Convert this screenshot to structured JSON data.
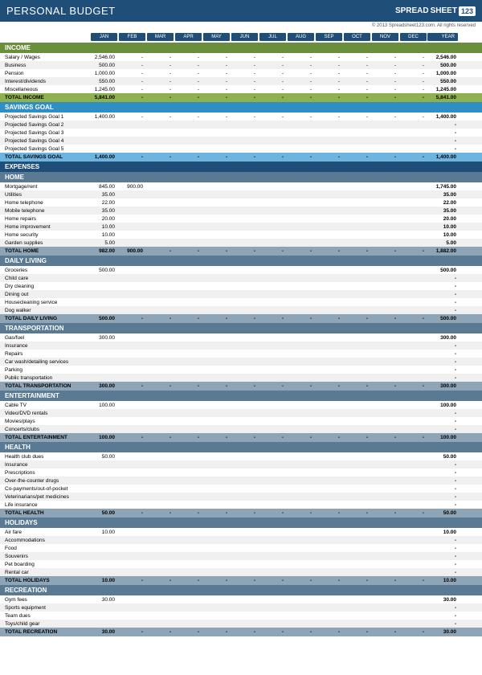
{
  "title": "PERSONAL BUDGET",
  "logo": {
    "prefix": "SPREAD",
    "mid": "SHEET",
    "suffix": "123"
  },
  "copyright": "© 2013 Spreadsheet123.com. All rights reserved",
  "months": [
    "JAN",
    "FEB",
    "MAR",
    "APR",
    "MAY",
    "JUN",
    "JUL",
    "AUG",
    "SEP",
    "OCT",
    "NOV",
    "DEC"
  ],
  "yearLabel": "YEAR",
  "colors": {
    "headerBg": "#1f4e79",
    "incomeHdr": "#6a8f3c",
    "incomeTotal": "#8fb04e",
    "savingsHdr": "#2f8fc4",
    "savingsTotal": "#6db4de",
    "expensesHdr": "#1f4e79",
    "catHdr": "#5a7a94",
    "catTotal": "#8ea5b8"
  },
  "sections": [
    {
      "name": "INCOME",
      "hdrColor": "#6a8f3c",
      "totalColor": "#8fb04e",
      "totalLabel": "TOTAL INCOME",
      "rows": [
        {
          "label": "Salary / Wages",
          "vals": [
            "2,546.00",
            "-",
            "-",
            "-",
            "-",
            "-",
            "-",
            "-",
            "-",
            "-",
            "-",
            "-"
          ],
          "year": "2,546.00"
        },
        {
          "label": "Business",
          "vals": [
            "500.00",
            "-",
            "-",
            "-",
            "-",
            "-",
            "-",
            "-",
            "-",
            "-",
            "-",
            "-"
          ],
          "year": "500.00"
        },
        {
          "label": "Pension",
          "vals": [
            "1,000.00",
            "-",
            "-",
            "-",
            "-",
            "-",
            "-",
            "-",
            "-",
            "-",
            "-",
            "-"
          ],
          "year": "1,000.00"
        },
        {
          "label": "Interest/dividends",
          "vals": [
            "550.00",
            "-",
            "-",
            "-",
            "-",
            "-",
            "-",
            "-",
            "-",
            "-",
            "-",
            "-"
          ],
          "year": "550.00"
        },
        {
          "label": "Miscellaneous",
          "vals": [
            "1,245.00",
            "-",
            "-",
            "-",
            "-",
            "-",
            "-",
            "-",
            "-",
            "-",
            "-",
            "-"
          ],
          "year": "1,245.00"
        }
      ],
      "total": {
        "vals": [
          "5,841.00",
          "-",
          "-",
          "-",
          "-",
          "-",
          "-",
          "-",
          "-",
          "-",
          "-",
          "-"
        ],
        "year": "5,841.00"
      }
    },
    {
      "name": "SAVINGS GOAL",
      "hdrColor": "#2f8fc4",
      "totalColor": "#6db4de",
      "totalLabel": "TOTAL SAVINGS GOAL",
      "rows": [
        {
          "label": "Projected Savings Goal 1",
          "vals": [
            "1,400.00",
            "-",
            "-",
            "-",
            "-",
            "-",
            "-",
            "-",
            "-",
            "-",
            "-",
            "-"
          ],
          "year": "1,400.00"
        },
        {
          "label": "Projected Savings Goal 2",
          "vals": [
            "",
            "",
            "",
            "",
            "",
            "",
            "",
            "",
            "",
            "",
            "",
            ""
          ],
          "year": "-"
        },
        {
          "label": "Projected Savings Goal 3",
          "vals": [
            "",
            "",
            "",
            "",
            "",
            "",
            "",
            "",
            "",
            "",
            "",
            ""
          ],
          "year": "-"
        },
        {
          "label": "Projected Savings Goal 4",
          "vals": [
            "",
            "",
            "",
            "",
            "",
            "",
            "",
            "",
            "",
            "",
            "",
            ""
          ],
          "year": "-"
        },
        {
          "label": "Projected Savings Goal 5",
          "vals": [
            "",
            "",
            "",
            "",
            "",
            "",
            "",
            "",
            "",
            "",
            "",
            ""
          ],
          "year": "-"
        }
      ],
      "total": {
        "vals": [
          "1,400.00",
          "-",
          "-",
          "-",
          "-",
          "-",
          "-",
          "-",
          "-",
          "-",
          "-",
          "-"
        ],
        "year": "1,400.00"
      }
    }
  ],
  "expensesLabel": "EXPENSES",
  "expenseCats": [
    {
      "name": "HOME",
      "totalLabel": "TOTAL HOME",
      "rows": [
        {
          "label": "Mortgage/rent",
          "vals": [
            "845.00",
            "900.00",
            "",
            "",
            "",
            "",
            "",
            "",
            "",
            "",
            "",
            ""
          ],
          "year": "1,745.00"
        },
        {
          "label": "Utilities",
          "vals": [
            "35.00",
            "",
            "",
            "",
            "",
            "",
            "",
            "",
            "",
            "",
            "",
            ""
          ],
          "year": "35.00"
        },
        {
          "label": "Home telephone",
          "vals": [
            "22.00",
            "",
            "",
            "",
            "",
            "",
            "",
            "",
            "",
            "",
            "",
            ""
          ],
          "year": "22.00"
        },
        {
          "label": "Mobile telephone",
          "vals": [
            "35.00",
            "",
            "",
            "",
            "",
            "",
            "",
            "",
            "",
            "",
            "",
            ""
          ],
          "year": "35.00"
        },
        {
          "label": "Home repairs",
          "vals": [
            "20.00",
            "",
            "",
            "",
            "",
            "",
            "",
            "",
            "",
            "",
            "",
            ""
          ],
          "year": "20.00"
        },
        {
          "label": "Home improvement",
          "vals": [
            "10.00",
            "",
            "",
            "",
            "",
            "",
            "",
            "",
            "",
            "",
            "",
            ""
          ],
          "year": "10.00"
        },
        {
          "label": "Home security",
          "vals": [
            "10.00",
            "",
            "",
            "",
            "",
            "",
            "",
            "",
            "",
            "",
            "",
            ""
          ],
          "year": "10.00"
        },
        {
          "label": "Garden supplies",
          "vals": [
            "5.00",
            "",
            "",
            "",
            "",
            "",
            "",
            "",
            "",
            "",
            "",
            ""
          ],
          "year": "5.00"
        }
      ],
      "total": {
        "vals": [
          "982.00",
          "900.00",
          "-",
          "-",
          "-",
          "-",
          "-",
          "-",
          "-",
          "-",
          "-",
          "-"
        ],
        "year": "1,882.00"
      }
    },
    {
      "name": "DAILY LIVING",
      "totalLabel": "TOTAL DAILY LIVING",
      "rows": [
        {
          "label": "Groceries",
          "vals": [
            "500.00",
            "",
            "",
            "",
            "",
            "",
            "",
            "",
            "",
            "",
            "",
            ""
          ],
          "year": "500.00"
        },
        {
          "label": "Child care",
          "vals": [
            "",
            "",
            "",
            "",
            "",
            "",
            "",
            "",
            "",
            "",
            "",
            ""
          ],
          "year": "-"
        },
        {
          "label": "Dry cleaning",
          "vals": [
            "",
            "",
            "",
            "",
            "",
            "",
            "",
            "",
            "",
            "",
            "",
            ""
          ],
          "year": "-"
        },
        {
          "label": "Dining out",
          "vals": [
            "",
            "",
            "",
            "",
            "",
            "",
            "",
            "",
            "",
            "",
            "",
            ""
          ],
          "year": "-"
        },
        {
          "label": "Housecleaning service",
          "vals": [
            "",
            "",
            "",
            "",
            "",
            "",
            "",
            "",
            "",
            "",
            "",
            ""
          ],
          "year": "-"
        },
        {
          "label": "Dog walker",
          "vals": [
            "",
            "",
            "",
            "",
            "",
            "",
            "",
            "",
            "",
            "",
            "",
            ""
          ],
          "year": "-"
        }
      ],
      "total": {
        "vals": [
          "500.00",
          "-",
          "-",
          "-",
          "-",
          "-",
          "-",
          "-",
          "-",
          "-",
          "-",
          "-"
        ],
        "year": "500.00"
      }
    },
    {
      "name": "TRANSPORTATION",
      "totalLabel": "TOTAL TRANSPORTATION",
      "rows": [
        {
          "label": "Gas/fuel",
          "vals": [
            "300.00",
            "",
            "",
            "",
            "",
            "",
            "",
            "",
            "",
            "",
            "",
            ""
          ],
          "year": "300.00"
        },
        {
          "label": "Insurance",
          "vals": [
            "",
            "",
            "",
            "",
            "",
            "",
            "",
            "",
            "",
            "",
            "",
            ""
          ],
          "year": "-"
        },
        {
          "label": "Repairs",
          "vals": [
            "",
            "",
            "",
            "",
            "",
            "",
            "",
            "",
            "",
            "",
            "",
            ""
          ],
          "year": "-"
        },
        {
          "label": "Car wash/detailing services",
          "vals": [
            "",
            "",
            "",
            "",
            "",
            "",
            "",
            "",
            "",
            "",
            "",
            ""
          ],
          "year": "-"
        },
        {
          "label": "Parking",
          "vals": [
            "",
            "",
            "",
            "",
            "",
            "",
            "",
            "",
            "",
            "",
            "",
            ""
          ],
          "year": "-"
        },
        {
          "label": "Public transportation",
          "vals": [
            "",
            "",
            "",
            "",
            "",
            "",
            "",
            "",
            "",
            "",
            "",
            ""
          ],
          "year": "-"
        }
      ],
      "total": {
        "vals": [
          "300.00",
          "-",
          "-",
          "-",
          "-",
          "-",
          "-",
          "-",
          "-",
          "-",
          "-",
          "-"
        ],
        "year": "300.00"
      }
    },
    {
      "name": "ENTERTAINMENT",
      "totalLabel": "TOTAL ENTERTAINMENT",
      "rows": [
        {
          "label": "Cable TV",
          "vals": [
            "100.00",
            "",
            "",
            "",
            "",
            "",
            "",
            "",
            "",
            "",
            "",
            ""
          ],
          "year": "100.00"
        },
        {
          "label": "Video/DVD rentals",
          "vals": [
            "",
            "",
            "",
            "",
            "",
            "",
            "",
            "",
            "",
            "",
            "",
            ""
          ],
          "year": "-"
        },
        {
          "label": "Movies/plays",
          "vals": [
            "",
            "",
            "",
            "",
            "",
            "",
            "",
            "",
            "",
            "",
            "",
            ""
          ],
          "year": "-"
        },
        {
          "label": "Concerts/clubs",
          "vals": [
            "",
            "",
            "",
            "",
            "",
            "",
            "",
            "",
            "",
            "",
            "",
            ""
          ],
          "year": "-"
        }
      ],
      "total": {
        "vals": [
          "100.00",
          "-",
          "-",
          "-",
          "-",
          "-",
          "-",
          "-",
          "-",
          "-",
          "-",
          "-"
        ],
        "year": "100.00"
      }
    },
    {
      "name": "HEALTH",
      "totalLabel": "TOTAL HEALTH",
      "rows": [
        {
          "label": "Health club dues",
          "vals": [
            "50.00",
            "",
            "",
            "",
            "",
            "",
            "",
            "",
            "",
            "",
            "",
            ""
          ],
          "year": "50.00"
        },
        {
          "label": "Insurance",
          "vals": [
            "",
            "",
            "",
            "",
            "",
            "",
            "",
            "",
            "",
            "",
            "",
            ""
          ],
          "year": "-"
        },
        {
          "label": "Prescriptions",
          "vals": [
            "",
            "",
            "",
            "",
            "",
            "",
            "",
            "",
            "",
            "",
            "",
            ""
          ],
          "year": "-"
        },
        {
          "label": "Over-the-counter drugs",
          "vals": [
            "",
            "",
            "",
            "",
            "",
            "",
            "",
            "",
            "",
            "",
            "",
            ""
          ],
          "year": "-"
        },
        {
          "label": "Co-payments/out-of-pocket",
          "vals": [
            "",
            "",
            "",
            "",
            "",
            "",
            "",
            "",
            "",
            "",
            "",
            ""
          ],
          "year": "-"
        },
        {
          "label": "Veterinarians/pet medicines",
          "vals": [
            "",
            "",
            "",
            "",
            "",
            "",
            "",
            "",
            "",
            "",
            "",
            ""
          ],
          "year": "-"
        },
        {
          "label": "Life insurance",
          "vals": [
            "",
            "",
            "",
            "",
            "",
            "",
            "",
            "",
            "",
            "",
            "",
            ""
          ],
          "year": "-"
        }
      ],
      "total": {
        "vals": [
          "50.00",
          "-",
          "-",
          "-",
          "-",
          "-",
          "-",
          "-",
          "-",
          "-",
          "-",
          "-"
        ],
        "year": "50.00"
      }
    },
    {
      "name": "HOLIDAYS",
      "totalLabel": "TOTAL HOLIDAYS",
      "rows": [
        {
          "label": "Air fare",
          "vals": [
            "10.00",
            "",
            "",
            "",
            "",
            "",
            "",
            "",
            "",
            "",
            "",
            ""
          ],
          "year": "10.00"
        },
        {
          "label": "Accommodations",
          "vals": [
            "",
            "",
            "",
            "",
            "",
            "",
            "",
            "",
            "",
            "",
            "",
            ""
          ],
          "year": "-"
        },
        {
          "label": "Food",
          "vals": [
            "",
            "",
            "",
            "",
            "",
            "",
            "",
            "",
            "",
            "",
            "",
            ""
          ],
          "year": "-"
        },
        {
          "label": "Souvenirs",
          "vals": [
            "",
            "",
            "",
            "",
            "",
            "",
            "",
            "",
            "",
            "",
            "",
            ""
          ],
          "year": "-"
        },
        {
          "label": "Pet boarding",
          "vals": [
            "",
            "",
            "",
            "",
            "",
            "",
            "",
            "",
            "",
            "",
            "",
            ""
          ],
          "year": "-"
        },
        {
          "label": "Rental car",
          "vals": [
            "",
            "",
            "",
            "",
            "",
            "",
            "",
            "",
            "",
            "",
            "",
            ""
          ],
          "year": "-"
        }
      ],
      "total": {
        "vals": [
          "10.00",
          "-",
          "-",
          "-",
          "-",
          "-",
          "-",
          "-",
          "-",
          "-",
          "-",
          "-"
        ],
        "year": "10.00"
      }
    },
    {
      "name": "RECREATION",
      "totalLabel": "TOTAL RECREATION",
      "rows": [
        {
          "label": "Gym fees",
          "vals": [
            "30.00",
            "",
            "",
            "",
            "",
            "",
            "",
            "",
            "",
            "",
            "",
            ""
          ],
          "year": "30.00"
        },
        {
          "label": "Sports equipment",
          "vals": [
            "",
            "",
            "",
            "",
            "",
            "",
            "",
            "",
            "",
            "",
            "",
            ""
          ],
          "year": "-"
        },
        {
          "label": "Team dues",
          "vals": [
            "",
            "",
            "",
            "",
            "",
            "",
            "",
            "",
            "",
            "",
            "",
            ""
          ],
          "year": "-"
        },
        {
          "label": "Toys/child gear",
          "vals": [
            "",
            "",
            "",
            "",
            "",
            "",
            "",
            "",
            "",
            "",
            "",
            ""
          ],
          "year": "-"
        }
      ],
      "total": {
        "vals": [
          "30.00",
          "-",
          "-",
          "-",
          "-",
          "-",
          "-",
          "-",
          "-",
          "-",
          "-",
          "-"
        ],
        "year": "30.00"
      }
    }
  ]
}
